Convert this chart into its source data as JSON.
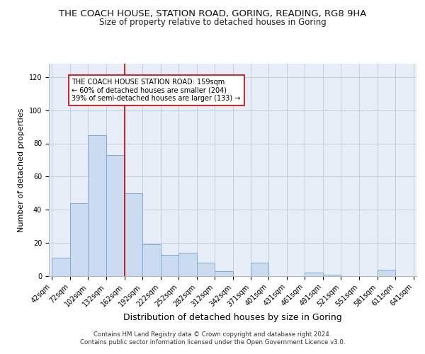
{
  "title1": "THE COACH HOUSE, STATION ROAD, GORING, READING, RG8 9HA",
  "title2": "Size of property relative to detached houses in Goring",
  "xlabel": "Distribution of detached houses by size in Goring",
  "ylabel": "Number of detached properties",
  "bar_values": [
    11,
    44,
    85,
    73,
    50,
    19,
    13,
    14,
    8,
    3,
    0,
    8,
    0,
    0,
    2,
    1,
    0,
    0,
    4,
    0
  ],
  "bin_edges": [
    42,
    72,
    102,
    132,
    162,
    192,
    222,
    252,
    282,
    312,
    342,
    371,
    401,
    431,
    461,
    491,
    521,
    551,
    581,
    611,
    641
  ],
  "x_tick_labels": [
    "42sqm",
    "72sqm",
    "102sqm",
    "132sqm",
    "162sqm",
    "192sqm",
    "222sqm",
    "252sqm",
    "282sqm",
    "312sqm",
    "342sqm",
    "371sqm",
    "401sqm",
    "431sqm",
    "461sqm",
    "491sqm",
    "521sqm",
    "551sqm",
    "581sqm",
    "611sqm",
    "641sqm"
  ],
  "bar_color": "#ccdcf0",
  "bar_edge_color": "#7aabdc",
  "property_line_x": 162,
  "property_line_color": "#cc0000",
  "annotation_text": "THE COACH HOUSE STATION ROAD: 159sqm\n← 60% of detached houses are smaller (204)\n39% of semi-detached houses are larger (133) →",
  "annotation_box_color": "#ffffff",
  "annotation_box_edge": "#cc0000",
  "ylim": [
    0,
    128
  ],
  "yticks": [
    0,
    20,
    40,
    60,
    80,
    100,
    120
  ],
  "background_color": "#e8eef8",
  "footer1": "Contains HM Land Registry data © Crown copyright and database right 2024.",
  "footer2": "Contains public sector information licensed under the Open Government Licence v3.0.",
  "title1_fontsize": 9.5,
  "title2_fontsize": 8.5,
  "xlabel_fontsize": 9,
  "ylabel_fontsize": 8,
  "tick_fontsize": 7,
  "footer_fontsize": 6.2
}
